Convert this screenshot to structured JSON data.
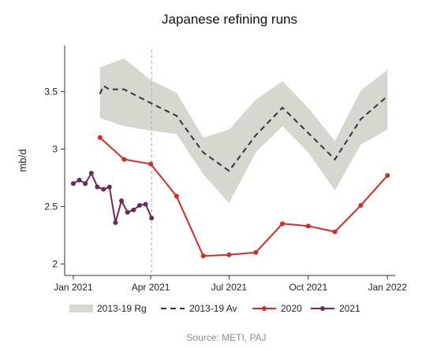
{
  "chart_data": {
    "type": "line",
    "title": "Japanese refining runs",
    "ylabel": "mb/d",
    "xlabel": "",
    "source": "Source: METI, PAJ",
    "y_ticks": [
      2,
      2.5,
      3,
      3.5
    ],
    "y_tick_labels": [
      "2",
      "2.5",
      "3",
      "3.5"
    ],
    "ylim": [
      1.9,
      3.9
    ],
    "x_ticks": [
      "2021-01-01",
      "2021-04-01",
      "2021-07-01",
      "2021-10-01",
      "2022-01-01"
    ],
    "x_tick_labels": [
      "Jan 2021",
      "Apr 2021",
      "Jul 2021",
      "Oct 2021",
      "Jan 2022"
    ],
    "xlim": [
      "2020-12-22",
      "2022-01-10"
    ],
    "reference_line_date": "2021-04-02",
    "grid": false,
    "legend_position": "bottom",
    "colors": {
      "range": "#d7d7cf",
      "average": "#333333",
      "y2020": "#d42a2a",
      "y2021": "#6b2a5a",
      "reference": "#aaaaaa"
    },
    "series": [
      {
        "name": "2013-19 Rg",
        "kind": "range",
        "x": [
          "2021-02-01",
          "2021-02-01",
          "2021-03-01",
          "2021-04-01",
          "2021-05-01",
          "2021-06-01",
          "2021-07-01",
          "2021-08-01",
          "2021-09-01",
          "2021-10-01",
          "2021-11-01",
          "2021-12-01",
          "2022-01-01"
        ],
        "low": [
          3.27,
          3.27,
          3.2,
          3.16,
          3.13,
          2.78,
          2.53,
          2.97,
          3.2,
          2.97,
          2.64,
          3.04,
          3.17
        ],
        "high": [
          3.7,
          3.71,
          3.79,
          3.6,
          3.49,
          3.1,
          3.17,
          3.43,
          3.59,
          3.36,
          3.07,
          3.51,
          3.69
        ]
      },
      {
        "name": "2013-19 Av",
        "kind": "dashed",
        "x": [
          "2021-02-01",
          "2021-02-05",
          "2021-02-12",
          "2021-03-01",
          "2021-04-01",
          "2021-05-01",
          "2021-06-01",
          "2021-07-01",
          "2021-08-01",
          "2021-09-01",
          "2021-10-01",
          "2021-11-01",
          "2021-12-01",
          "2022-01-01"
        ],
        "values": [
          3.48,
          3.55,
          3.52,
          3.52,
          3.4,
          3.29,
          2.97,
          2.81,
          3.12,
          3.36,
          3.14,
          2.91,
          3.26,
          3.46
        ]
      },
      {
        "name": "2020",
        "kind": "line",
        "x": [
          "2021-02-01",
          "2021-03-01",
          "2021-04-01",
          "2021-05-01",
          "2021-06-01",
          "2021-07-01",
          "2021-08-01",
          "2021-09-01",
          "2021-10-01",
          "2021-11-01",
          "2021-12-01",
          "2022-01-01"
        ],
        "values": [
          3.1,
          2.91,
          2.87,
          2.59,
          2.07,
          2.08,
          2.1,
          2.35,
          2.33,
          2.28,
          2.51,
          2.77
        ]
      },
      {
        "name": "2021",
        "kind": "line",
        "x": [
          "2021-01-01",
          "2021-01-08",
          "2021-01-15",
          "2021-01-22",
          "2021-01-29",
          "2021-02-05",
          "2021-02-12",
          "2021-02-19",
          "2021-02-26",
          "2021-03-05",
          "2021-03-12",
          "2021-03-19",
          "2021-03-26",
          "2021-04-02"
        ],
        "values": [
          2.7,
          2.73,
          2.7,
          2.79,
          2.67,
          2.65,
          2.67,
          2.36,
          2.55,
          2.45,
          2.47,
          2.51,
          2.52,
          2.4
        ]
      }
    ]
  }
}
